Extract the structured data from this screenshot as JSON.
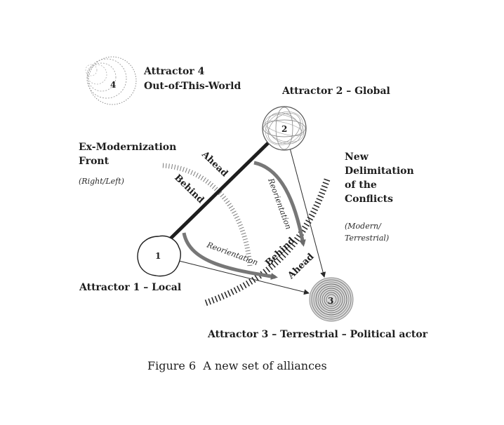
{
  "attractors": {
    "a1": {
      "number": "1",
      "label": "Attractor 1 – Local"
    },
    "a2": {
      "number": "2",
      "label": "Attractor 2 – Global"
    },
    "a3": {
      "number": "3",
      "label": "Attractor 3 – Terrestrial – Political actor"
    },
    "a4": {
      "number": "4",
      "line1": "Attractor 4",
      "line2": "Out-of-This-World"
    }
  },
  "fronts": {
    "ex_modernization": {
      "line1": "Ex-Modernization",
      "line2": "Front",
      "note": "(Right/Left)"
    },
    "new_delimitation": {
      "line1": "New",
      "line2": "Delimitation",
      "line3": "of the",
      "line4": "Conflicts",
      "note1": "(Modern/",
      "note2": "Terrestrial)"
    }
  },
  "arrows": {
    "ahead": "Ahead",
    "behind": "Behind",
    "reorientation": "Reorientation"
  },
  "caption": "Figure 6  A new set of alliances"
}
